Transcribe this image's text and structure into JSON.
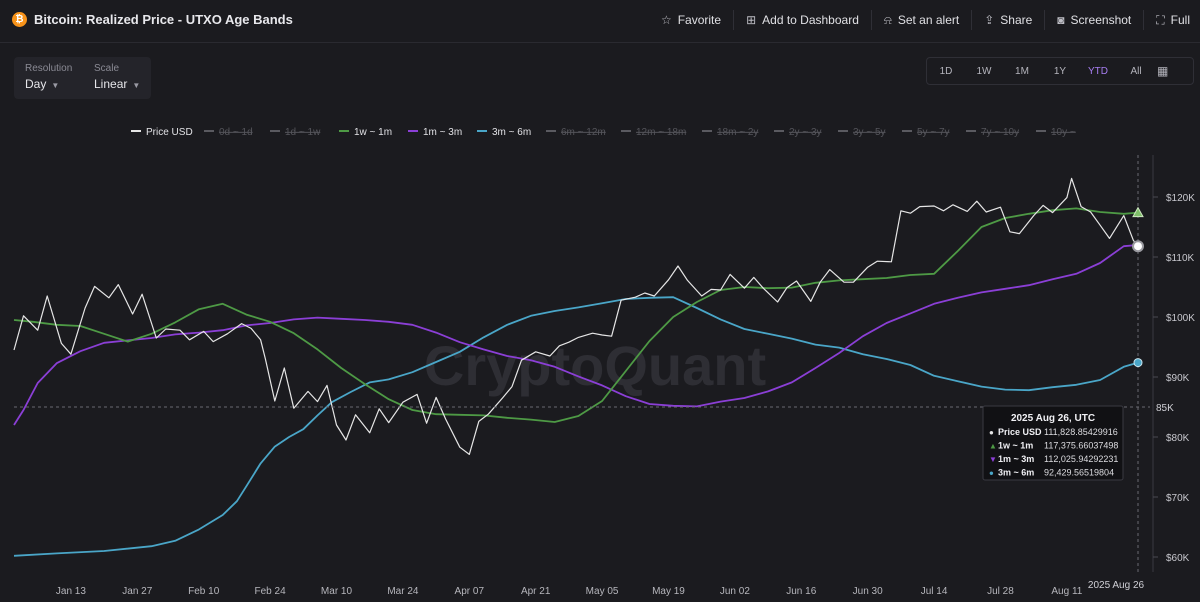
{
  "header": {
    "title": "Bitcoin: Realized Price - UTXO Age Bands",
    "actions": [
      {
        "label": "Favorite",
        "icon": "star-icon"
      },
      {
        "label": "Add to Dashboard",
        "icon": "dashboard-add-icon"
      },
      {
        "label": "Set an alert",
        "icon": "bell-icon"
      },
      {
        "label": "Share",
        "icon": "share-icon"
      },
      {
        "label": "Screenshot",
        "icon": "camera-icon"
      },
      {
        "label": "Full",
        "icon": "fullscreen-icon"
      }
    ]
  },
  "controls": {
    "resolution_label": "Resolution",
    "resolution_value": "Day",
    "scale_label": "Scale",
    "scale_value": "Linear"
  },
  "ranges": [
    "1D",
    "1W",
    "1M",
    "1Y",
    "YTD",
    "All"
  ],
  "active_range": "YTD",
  "watermark": "CryptoQuant",
  "colors": {
    "price": "#e6e6e6",
    "band_1w_1m": "#4e9a45",
    "band_1m_3m": "#8b3fd6",
    "band_3m_6m": "#4aa6c8",
    "disabled": "#5a5a60",
    "accent": "#a77ef2"
  },
  "chart_data": {
    "type": "line",
    "title": "Bitcoin: Realized Price - UTXO Age Bands",
    "y_scale": "linear",
    "ylim": [
      55000,
      128000
    ],
    "y_ticks": [
      "$120K",
      "$110K",
      "$100K",
      "$90K",
      "$80K",
      "$70K",
      "$60K"
    ],
    "y_tick_values": [
      120000,
      110000,
      100000,
      90000,
      80000,
      70000,
      60000
    ],
    "x_ticks": [
      "Jan 13",
      "Jan 27",
      "Feb 10",
      "Feb 24",
      "Mar 10",
      "Mar 24",
      "Apr 07",
      "Apr 21",
      "May 05",
      "May 19",
      "Jun 02",
      "Jun 16",
      "Jun 30",
      "Jul 14",
      "Jul 28",
      "Aug 11"
    ],
    "x_tick_days": [
      13,
      27,
      41,
      55,
      69,
      83,
      97,
      111,
      125,
      139,
      153,
      167,
      181,
      195,
      209,
      223
    ],
    "x_range_days": [
      1,
      238
    ],
    "crosshair": {
      "date_label": "2025 Aug 26",
      "day": 238,
      "price_label": "85K",
      "price_value": 85000
    },
    "legend": [
      {
        "name": "Price USD",
        "active": true
      },
      {
        "name": "0d ~ 1d",
        "active": false
      },
      {
        "name": "1d ~ 1w",
        "active": false
      },
      {
        "name": "1w ~ 1m",
        "active": true
      },
      {
        "name": "1m ~ 3m",
        "active": true
      },
      {
        "name": "3m ~ 6m",
        "active": true
      },
      {
        "name": "6m ~ 12m",
        "active": false
      },
      {
        "name": "12m ~ 18m",
        "active": false
      },
      {
        "name": "18m ~ 2y",
        "active": false
      },
      {
        "name": "2y ~ 3y",
        "active": false
      },
      {
        "name": "3y ~ 5y",
        "active": false
      },
      {
        "name": "5y ~ 7y",
        "active": false
      },
      {
        "name": "7y ~ 10y",
        "active": false
      },
      {
        "name": "10y ~",
        "active": false
      }
    ],
    "tooltip": {
      "date": "2025 Aug 26, UTC",
      "rows": [
        {
          "name": "Price USD",
          "value": "111,828.85429916",
          "marker": "●"
        },
        {
          "name": "1w ~ 1m",
          "value": "117,375.66037498",
          "marker": "▲"
        },
        {
          "name": "1m ~ 3m",
          "value": "112,025.94292231",
          "marker": "▼"
        },
        {
          "name": "3m ~ 6m",
          "value": "92,429.56519804",
          "marker": "●"
        }
      ]
    },
    "series": [
      {
        "name": "Price USD",
        "x": [
          1,
          3,
          6,
          8,
          11,
          13,
          16,
          18,
          21,
          23,
          26,
          28,
          31,
          33,
          36,
          38,
          41,
          43,
          46,
          49,
          51,
          53,
          54,
          56,
          58,
          60,
          63,
          65,
          67,
          69,
          71,
          73,
          76,
          78,
          80,
          83,
          86,
          88,
          90,
          92,
          95,
          97,
          99,
          101,
          104,
          106,
          108,
          111,
          114,
          116,
          118,
          120,
          123,
          125,
          127,
          129,
          132,
          134,
          136,
          139,
          141,
          143,
          146,
          148,
          150,
          152,
          155,
          157,
          159,
          162,
          164,
          166,
          169,
          171,
          173,
          176,
          178,
          181,
          183,
          186,
          188,
          190,
          192,
          195,
          197,
          199,
          202,
          204,
          206,
          209,
          211,
          213,
          216,
          218,
          220,
          223,
          224,
          226,
          228,
          230,
          232,
          235,
          237,
          238
        ],
        "y": [
          94500,
          100200,
          97800,
          103500,
          95600,
          93800,
          101500,
          105100,
          103200,
          105400,
          100500,
          103800,
          96500,
          98000,
          97800,
          96200,
          97600,
          95900,
          97200,
          98900,
          98100,
          96200,
          93000,
          86000,
          91500,
          84800,
          87600,
          85900,
          88600,
          82000,
          79500,
          83700,
          80700,
          84700,
          82400,
          85800,
          87100,
          82300,
          86600,
          83000,
          78300,
          77100,
          82600,
          83800,
          86500,
          88400,
          92800,
          94200,
          93500,
          95200,
          95800,
          96600,
          97300,
          97000,
          96800,
          102800,
          103300,
          104000,
          103500,
          106200,
          108500,
          106100,
          103500,
          104600,
          104500,
          107100,
          104800,
          106600,
          104800,
          102500,
          104900,
          106000,
          102600,
          105800,
          107900,
          105800,
          105800,
          108300,
          109300,
          109200,
          117700,
          117300,
          118400,
          118500,
          117700,
          118700,
          117600,
          119300,
          117500,
          118300,
          114200,
          113900,
          116900,
          118600,
          117400,
          119900,
          123100,
          118400,
          117500,
          115300,
          113100,
          116900,
          112800,
          111800
        ]
      },
      {
        "name": "1w ~ 1m",
        "x": [
          1,
          5,
          10,
          15,
          20,
          25,
          30,
          35,
          40,
          45,
          50,
          55,
          60,
          65,
          70,
          75,
          80,
          85,
          90,
          95,
          100,
          105,
          110,
          115,
          120,
          125,
          130,
          135,
          140,
          145,
          150,
          155,
          160,
          165,
          170,
          175,
          180,
          185,
          190,
          195,
          200,
          205,
          210,
          215,
          220,
          225,
          230,
          235,
          238
        ],
        "y": [
          99500,
          99200,
          98700,
          98500,
          97200,
          95900,
          97200,
          99100,
          101300,
          102200,
          100400,
          99200,
          97300,
          94600,
          91500,
          88800,
          86300,
          84500,
          83800,
          83700,
          83600,
          83200,
          82900,
          82500,
          83500,
          86000,
          91000,
          96000,
          100000,
          102500,
          104500,
          105000,
          104800,
          104900,
          105700,
          106100,
          106300,
          106500,
          107000,
          107200,
          111000,
          115000,
          116500,
          117200,
          117800,
          118100,
          117500,
          117200,
          117400
        ]
      },
      {
        "name": "1m ~ 3m",
        "x": [
          1,
          3,
          6,
          10,
          15,
          20,
          25,
          30,
          35,
          40,
          45,
          50,
          55,
          60,
          65,
          70,
          75,
          80,
          85,
          90,
          95,
          100,
          105,
          110,
          115,
          120,
          125,
          130,
          135,
          140,
          145,
          150,
          155,
          160,
          165,
          170,
          175,
          180,
          185,
          190,
          195,
          200,
          205,
          210,
          215,
          220,
          225,
          230,
          235,
          238
        ],
        "y": [
          82000,
          84500,
          89000,
          92300,
          94300,
          95700,
          96100,
          96500,
          97100,
          97400,
          97800,
          98600,
          99000,
          99600,
          99900,
          99700,
          99500,
          99200,
          98700,
          97400,
          95800,
          94600,
          93500,
          92800,
          91700,
          90100,
          88600,
          86800,
          85500,
          85200,
          85100,
          85900,
          86500,
          87600,
          89100,
          91500,
          94000,
          96800,
          99000,
          100600,
          102200,
          103200,
          104100,
          104700,
          105300,
          106300,
          107200,
          109000,
          111800,
          112000
        ]
      },
      {
        "name": "3m ~ 6m",
        "x": [
          1,
          10,
          20,
          30,
          35,
          40,
          45,
          48,
          50,
          53,
          56,
          59,
          62,
          65,
          68,
          72,
          76,
          80,
          85,
          90,
          95,
          100,
          105,
          110,
          115,
          120,
          125,
          130,
          135,
          140,
          145,
          150,
          155,
          160,
          165,
          170,
          175,
          180,
          185,
          190,
          195,
          200,
          205,
          210,
          215,
          220,
          225,
          230,
          235,
          238
        ],
        "y": [
          60200,
          60600,
          61000,
          61800,
          62700,
          64600,
          67000,
          69300,
          71800,
          75600,
          78400,
          80000,
          81300,
          83600,
          85800,
          87500,
          89100,
          89600,
          90800,
          92500,
          94200,
          96600,
          98700,
          100200,
          101000,
          101600,
          102300,
          103000,
          103200,
          103300,
          101500,
          99600,
          98000,
          97200,
          96400,
          95400,
          94900,
          93800,
          93000,
          92000,
          90200,
          89300,
          88400,
          87900,
          87800,
          88300,
          88700,
          89500,
          91700,
          92400
        ]
      }
    ]
  }
}
